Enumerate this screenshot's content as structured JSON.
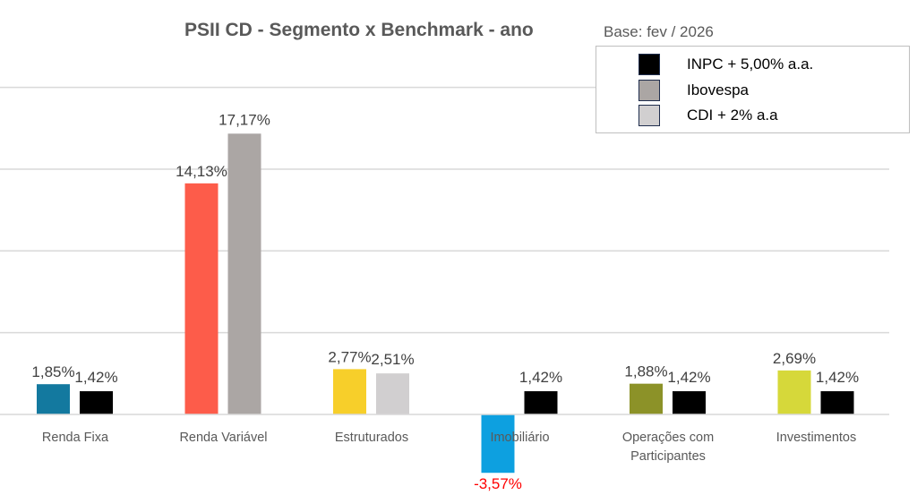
{
  "chart_data": {
    "type": "bar",
    "title": "PSII CD - Segmento x Benchmark - ano",
    "subtitle": "Base: fev / 2026",
    "categories": [
      "Renda Fixa",
      "Renda Variável",
      "Estruturados",
      "Imobiliário",
      "Operações com Participantes",
      "Investimentos"
    ],
    "segment_values": [
      1.85,
      14.13,
      2.77,
      -3.57,
      1.88,
      2.69
    ],
    "segment_labels": [
      "1,85%",
      "14,13%",
      "2,77%",
      "-3,57%",
      "1,88%",
      "2,69%"
    ],
    "segment_colors": [
      "#13799f",
      "#fd5c4a",
      "#f7cf2a",
      "#0da0e0",
      "#8c9228",
      "#d6d83a"
    ],
    "benchmark_values": [
      1.42,
      17.17,
      2.51,
      1.42,
      1.42,
      1.42
    ],
    "benchmark_labels": [
      "1,42%",
      "17,17%",
      "2,51%",
      "1,42%",
      "1,42%",
      "1,42%"
    ],
    "benchmark_series": [
      0,
      1,
      2,
      0,
      0,
      0
    ],
    "legend": [
      {
        "name": "INPC + 5,00% a.a.",
        "color": "#000000"
      },
      {
        "name": "Ibovespa",
        "color": "#aba6a4"
      },
      {
        "name": "CDI + 2% a.a",
        "color": "#d1cfd0"
      }
    ],
    "negative_label_color": "#ff0000",
    "ylim": [
      -5,
      20
    ],
    "gridlines": [
      5,
      10,
      15,
      20
    ],
    "grid": true,
    "legend_position": "top-right"
  }
}
